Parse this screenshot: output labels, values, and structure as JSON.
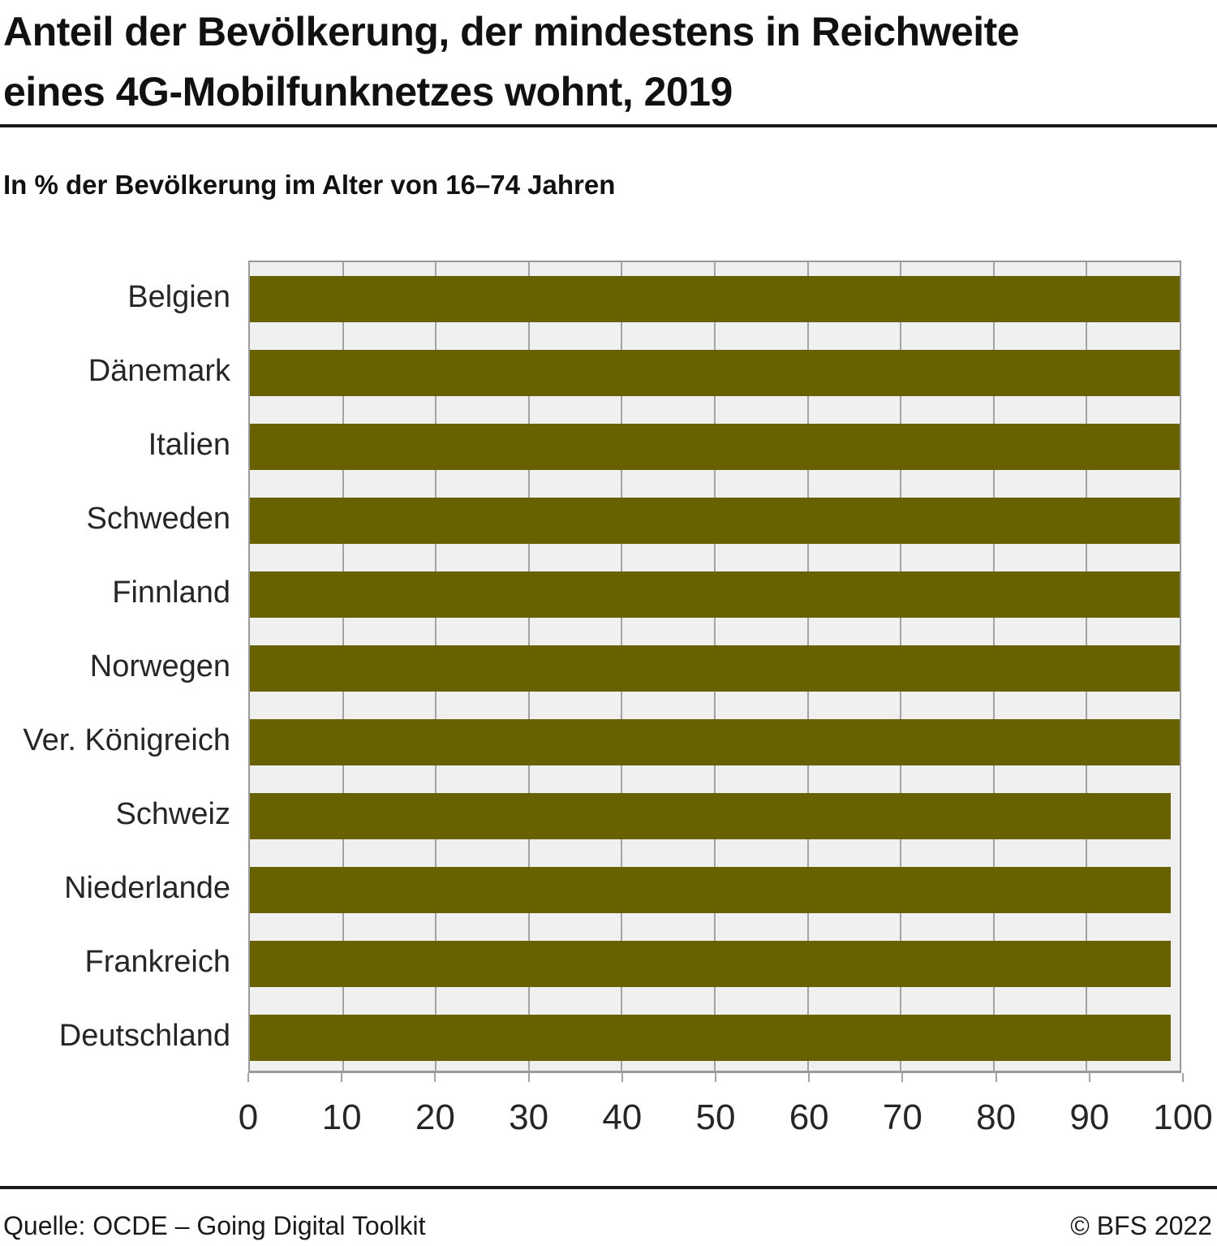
{
  "header": {
    "title_lines": [
      "Anteil der Bevölkerung, der mindestens in Reichweite",
      "eines 4G-Mobilfunknetzes wohnt, 2019"
    ],
    "subtitle": "In % der Bevölkerung im Alter von 16–74 Jahren"
  },
  "chart_data": {
    "type": "bar",
    "orientation": "horizontal",
    "title": "Anteil der Bevölkerung, der mindestens in Reichweite eines 4G-Mobilfunknetzes wohnt, 2019",
    "subtitle": "In % der Bevölkerung im Alter von 16–74 Jahren",
    "categories": [
      "Belgien",
      "Dänemark",
      "Italien",
      "Schweden",
      "Finnland",
      "Norwegen",
      "Ver. Königreich",
      "Schweiz",
      "Niederlande",
      "Frankreich",
      "Deutschland"
    ],
    "values": [
      100,
      100,
      100,
      100,
      100,
      100,
      100,
      99,
      99,
      99,
      99
    ],
    "xlim": [
      0,
      100
    ],
    "xticks": [
      0,
      10,
      20,
      30,
      40,
      50,
      60,
      70,
      80,
      90,
      100
    ],
    "grid": true,
    "legend": false,
    "colors": {
      "bar": "#676100",
      "plot_background": "#f0f0f0",
      "gridline": "#a3a3a3",
      "plot_border": "#9a9a9a"
    }
  },
  "footer": {
    "source": "Quelle: OCDE – Going Digital Toolkit",
    "copyright": "© BFS 2022"
  }
}
